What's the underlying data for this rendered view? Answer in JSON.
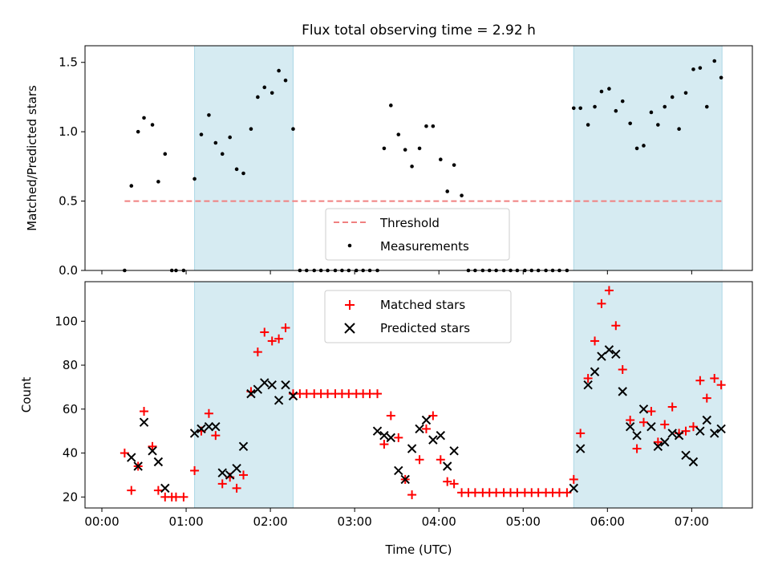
{
  "chart_data": [
    {
      "type": "scatter",
      "title": "Flux total observing time = 2.92 h",
      "xlabel": "",
      "ylabel": "Matched/Predicted stars",
      "xlim": [
        -0.2,
        7.72
      ],
      "ylim": [
        0,
        1.62
      ],
      "yticks": [
        0.0,
        0.5,
        1.0,
        1.5
      ],
      "ytick_labels": [
        "0.0",
        "0.5",
        "1.0",
        "1.5"
      ],
      "shaded_ranges": [
        [
          1.1,
          2.27
        ],
        [
          5.6,
          7.36
        ]
      ],
      "threshold": {
        "name": "Threshold",
        "x": [
          0.27,
          7.36
        ],
        "y": 0.5,
        "color": "#f08080"
      },
      "series": [
        {
          "name": "Measurements",
          "color": "#000000",
          "x": [
            0.27,
            0.35,
            0.43,
            0.5,
            0.6,
            0.67,
            0.75,
            0.83,
            0.88,
            0.97,
            1.1,
            1.18,
            1.27,
            1.35,
            1.43,
            1.52,
            1.6,
            1.68,
            1.77,
            1.85,
            1.93,
            2.02,
            2.1,
            2.18,
            2.27,
            2.35,
            2.43,
            2.52,
            2.6,
            2.68,
            2.77,
            2.85,
            2.93,
            3.02,
            3.1,
            3.18,
            3.27,
            3.35,
            3.43,
            3.52,
            3.6,
            3.68,
            3.77,
            3.85,
            3.93,
            4.02,
            4.1,
            4.18,
            4.27,
            4.35,
            4.43,
            4.52,
            4.6,
            4.68,
            4.77,
            4.85,
            4.93,
            5.02,
            5.1,
            5.18,
            5.27,
            5.35,
            5.43,
            5.52,
            5.6,
            5.68,
            5.77,
            5.85,
            5.93,
            6.02,
            6.1,
            6.18,
            6.27,
            6.35,
            6.43,
            6.52,
            6.6,
            6.68,
            6.77,
            6.85,
            6.93,
            7.02,
            7.1,
            7.18,
            7.27,
            7.35
          ],
          "y": [
            0,
            0.61,
            1.0,
            1.1,
            1.05,
            0.64,
            0.84,
            0,
            0,
            0,
            0.66,
            0.98,
            1.12,
            0.92,
            0.84,
            0.96,
            0.73,
            0.7,
            1.02,
            1.25,
            1.32,
            1.28,
            1.44,
            1.37,
            1.02,
            0,
            0,
            0,
            0,
            0,
            0,
            0,
            0,
            0,
            0,
            0,
            0,
            0.88,
            1.19,
            0.98,
            0.87,
            0.75,
            0.88,
            1.04,
            1.04,
            0.8,
            0.57,
            0.76,
            0.54,
            0,
            0,
            0,
            0,
            0,
            0,
            0,
            0,
            0,
            0,
            0,
            0,
            0,
            0,
            0,
            1.17,
            1.17,
            1.05,
            1.18,
            1.29,
            1.31,
            1.15,
            1.22,
            1.06,
            0.88,
            0.9,
            1.14,
            1.05,
            1.18,
            1.25,
            1.02,
            1.28,
            1.45,
            1.46,
            1.18,
            1.51,
            1.39
          ]
        }
      ],
      "legend": {
        "position": "lower-center",
        "entries": [
          "Threshold",
          "Measurements"
        ]
      }
    },
    {
      "type": "scatter",
      "title": "",
      "xlabel": "Time (UTC)",
      "ylabel": "Count",
      "xlim": [
        -0.2,
        7.72
      ],
      "ylim": [
        15,
        118
      ],
      "yticks": [
        20,
        40,
        60,
        80,
        100
      ],
      "ytick_labels": [
        "20",
        "40",
        "60",
        "80",
        "100"
      ],
      "xticks": [
        0,
        1,
        2,
        3,
        4,
        5,
        6,
        7
      ],
      "xtick_labels": [
        "00:00",
        "01:00",
        "02:00",
        "03:00",
        "04:00",
        "05:00",
        "06:00",
        "07:00"
      ],
      "shaded_ranges": [
        [
          1.1,
          2.27
        ],
        [
          5.6,
          7.36
        ]
      ],
      "series": [
        {
          "name": "Matched stars",
          "marker": "+",
          "color": "#ff0000",
          "x": [
            0.27,
            0.35,
            0.43,
            0.5,
            0.6,
            0.67,
            0.75,
            0.83,
            0.88,
            0.97,
            1.1,
            1.18,
            1.27,
            1.35,
            1.43,
            1.52,
            1.6,
            1.68,
            1.77,
            1.85,
            1.93,
            2.02,
            2.1,
            2.18,
            2.27,
            2.35,
            2.43,
            2.52,
            2.6,
            2.68,
            2.77,
            2.85,
            2.93,
            3.02,
            3.1,
            3.18,
            3.27,
            3.35,
            3.43,
            3.52,
            3.6,
            3.68,
            3.77,
            3.85,
            3.93,
            4.02,
            4.1,
            4.18,
            4.27,
            4.35,
            4.43,
            4.52,
            4.6,
            4.68,
            4.77,
            4.85,
            4.93,
            5.02,
            5.1,
            5.18,
            5.27,
            5.35,
            5.43,
            5.52,
            5.6,
            5.68,
            5.77,
            5.85,
            5.93,
            6.02,
            6.1,
            6.18,
            6.27,
            6.35,
            6.43,
            6.52,
            6.6,
            6.68,
            6.77,
            6.85,
            6.93,
            7.02,
            7.1,
            7.18,
            7.27,
            7.35
          ],
          "y": [
            40,
            23,
            34,
            59,
            43,
            23,
            20,
            20,
            20,
            20,
            32,
            50,
            58,
            48,
            26,
            29,
            24,
            30,
            68,
            86,
            95,
            91,
            92,
            97,
            67,
            67,
            67,
            67,
            67,
            67,
            67,
            67,
            67,
            67,
            67,
            67,
            67,
            44,
            57,
            47,
            28,
            21,
            37,
            51,
            57,
            37,
            27,
            26,
            22,
            22,
            22,
            22,
            22,
            22,
            22,
            22,
            22,
            22,
            22,
            22,
            22,
            22,
            22,
            22,
            28,
            49,
            74,
            91,
            108,
            114,
            98,
            78,
            55,
            42,
            54,
            59,
            45,
            53,
            61,
            49,
            50,
            52,
            73,
            65,
            74,
            71
          ]
        },
        {
          "name": "Predicted stars",
          "marker": "x",
          "color": "#000000",
          "x": [
            0.35,
            0.43,
            0.5,
            0.6,
            0.67,
            0.75,
            1.1,
            1.18,
            1.27,
            1.35,
            1.43,
            1.52,
            1.6,
            1.68,
            1.77,
            1.85,
            1.93,
            2.02,
            2.1,
            2.18,
            2.27,
            3.27,
            3.35,
            3.43,
            3.52,
            3.6,
            3.68,
            3.77,
            3.85,
            3.93,
            4.02,
            4.1,
            4.18,
            5.6,
            5.68,
            5.77,
            5.85,
            5.93,
            6.02,
            6.1,
            6.18,
            6.27,
            6.35,
            6.43,
            6.52,
            6.6,
            6.68,
            6.77,
            6.85,
            6.93,
            7.02,
            7.1,
            7.18,
            7.27,
            7.35
          ],
          "y": [
            38,
            34,
            54,
            41,
            36,
            24,
            49,
            51,
            52,
            52,
            31,
            30,
            33,
            43,
            67,
            69,
            72,
            71,
            64,
            71,
            66,
            50,
            48,
            47,
            32,
            28,
            42,
            51,
            55,
            46,
            48,
            34,
            41,
            24,
            42,
            71,
            77,
            84,
            87,
            85,
            68,
            52,
            48,
            60,
            52,
            43,
            45,
            49,
            48,
            39,
            36,
            50,
            55,
            49,
            51
          ]
        }
      ],
      "legend": {
        "position": "upper-center",
        "entries": [
          "Matched stars",
          "Predicted stars"
        ]
      }
    }
  ]
}
